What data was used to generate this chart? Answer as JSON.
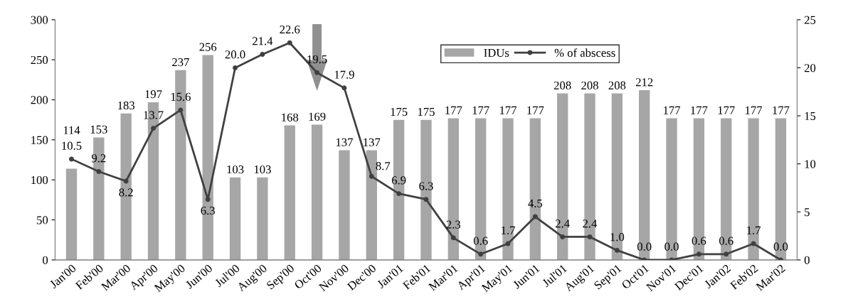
{
  "chart_data": {
    "type": "bar",
    "categories": [
      "Jan'00",
      "Feb'00",
      "Mar'00",
      "Apr'00",
      "May'00",
      "Jun'00",
      "Jul'00",
      "Aug'00",
      "Sep'00",
      "Oct'00",
      "Nov'00",
      "Dec'00",
      "Jan'01",
      "Feb'01",
      "Mar'01",
      "Apr'01",
      "May'01",
      "Jun'01",
      "Jul'01",
      "Aug'01",
      "Sep'01",
      "Oct'01",
      "Nov'01",
      "Dec'01",
      "Jan'02",
      "Feb'02",
      "Mar'02"
    ],
    "series": [
      {
        "name": "IDUs",
        "color": "#a6a6a6",
        "values": [
          114,
          153,
          183,
          197,
          237,
          256,
          103,
          103,
          168,
          169,
          137,
          137,
          175,
          175,
          177,
          177,
          177,
          177,
          208,
          208,
          208,
          212,
          177,
          177,
          177,
          177,
          177
        ],
        "value_labels": [
          "114",
          "153",
          "183",
          "197",
          "237",
          "256",
          "103",
          "103",
          "168",
          "169",
          "137",
          "137",
          "175",
          "175",
          "177",
          "177",
          "177",
          "177",
          "208",
          "208",
          "208",
          "212",
          "177",
          "177",
          "177",
          "177",
          "177"
        ]
      },
      {
        "name": "% of abscess",
        "type": "line",
        "axis": "y2",
        "color": "#404040",
        "values": [
          10.5,
          9.2,
          8.2,
          13.7,
          15.6,
          6.3,
          20.0,
          21.4,
          22.6,
          19.5,
          17.9,
          8.7,
          6.9,
          6.3,
          2.3,
          0.6,
          1.7,
          4.5,
          2.4,
          2.4,
          1.0,
          0.0,
          0.0,
          0.6,
          0.6,
          1.7,
          0.0
        ],
        "value_labels": [
          "10.5",
          "9.2",
          "8.2",
          "13.7",
          "15.6",
          "6.3",
          "20.0",
          "21.4",
          "22.6",
          "19.5",
          "17.9",
          "8.7",
          "6.9",
          "6.3",
          "2.3",
          "0.6",
          "1.7",
          "4.5",
          "2.4",
          "2.4",
          "1.0",
          "0.0",
          "0.0",
          "0.6",
          "0.6",
          "1.7",
          "0.0"
        ]
      }
    ],
    "ylim": [
      0,
      300
    ],
    "yticks": [
      0,
      50,
      100,
      150,
      200,
      250,
      300
    ],
    "y2lim": [
      0,
      25
    ],
    "y2ticks": [
      0,
      5,
      10,
      15,
      20,
      25
    ],
    "legend": "top",
    "marker": "circle",
    "line_style": "solid",
    "grid": false
  }
}
